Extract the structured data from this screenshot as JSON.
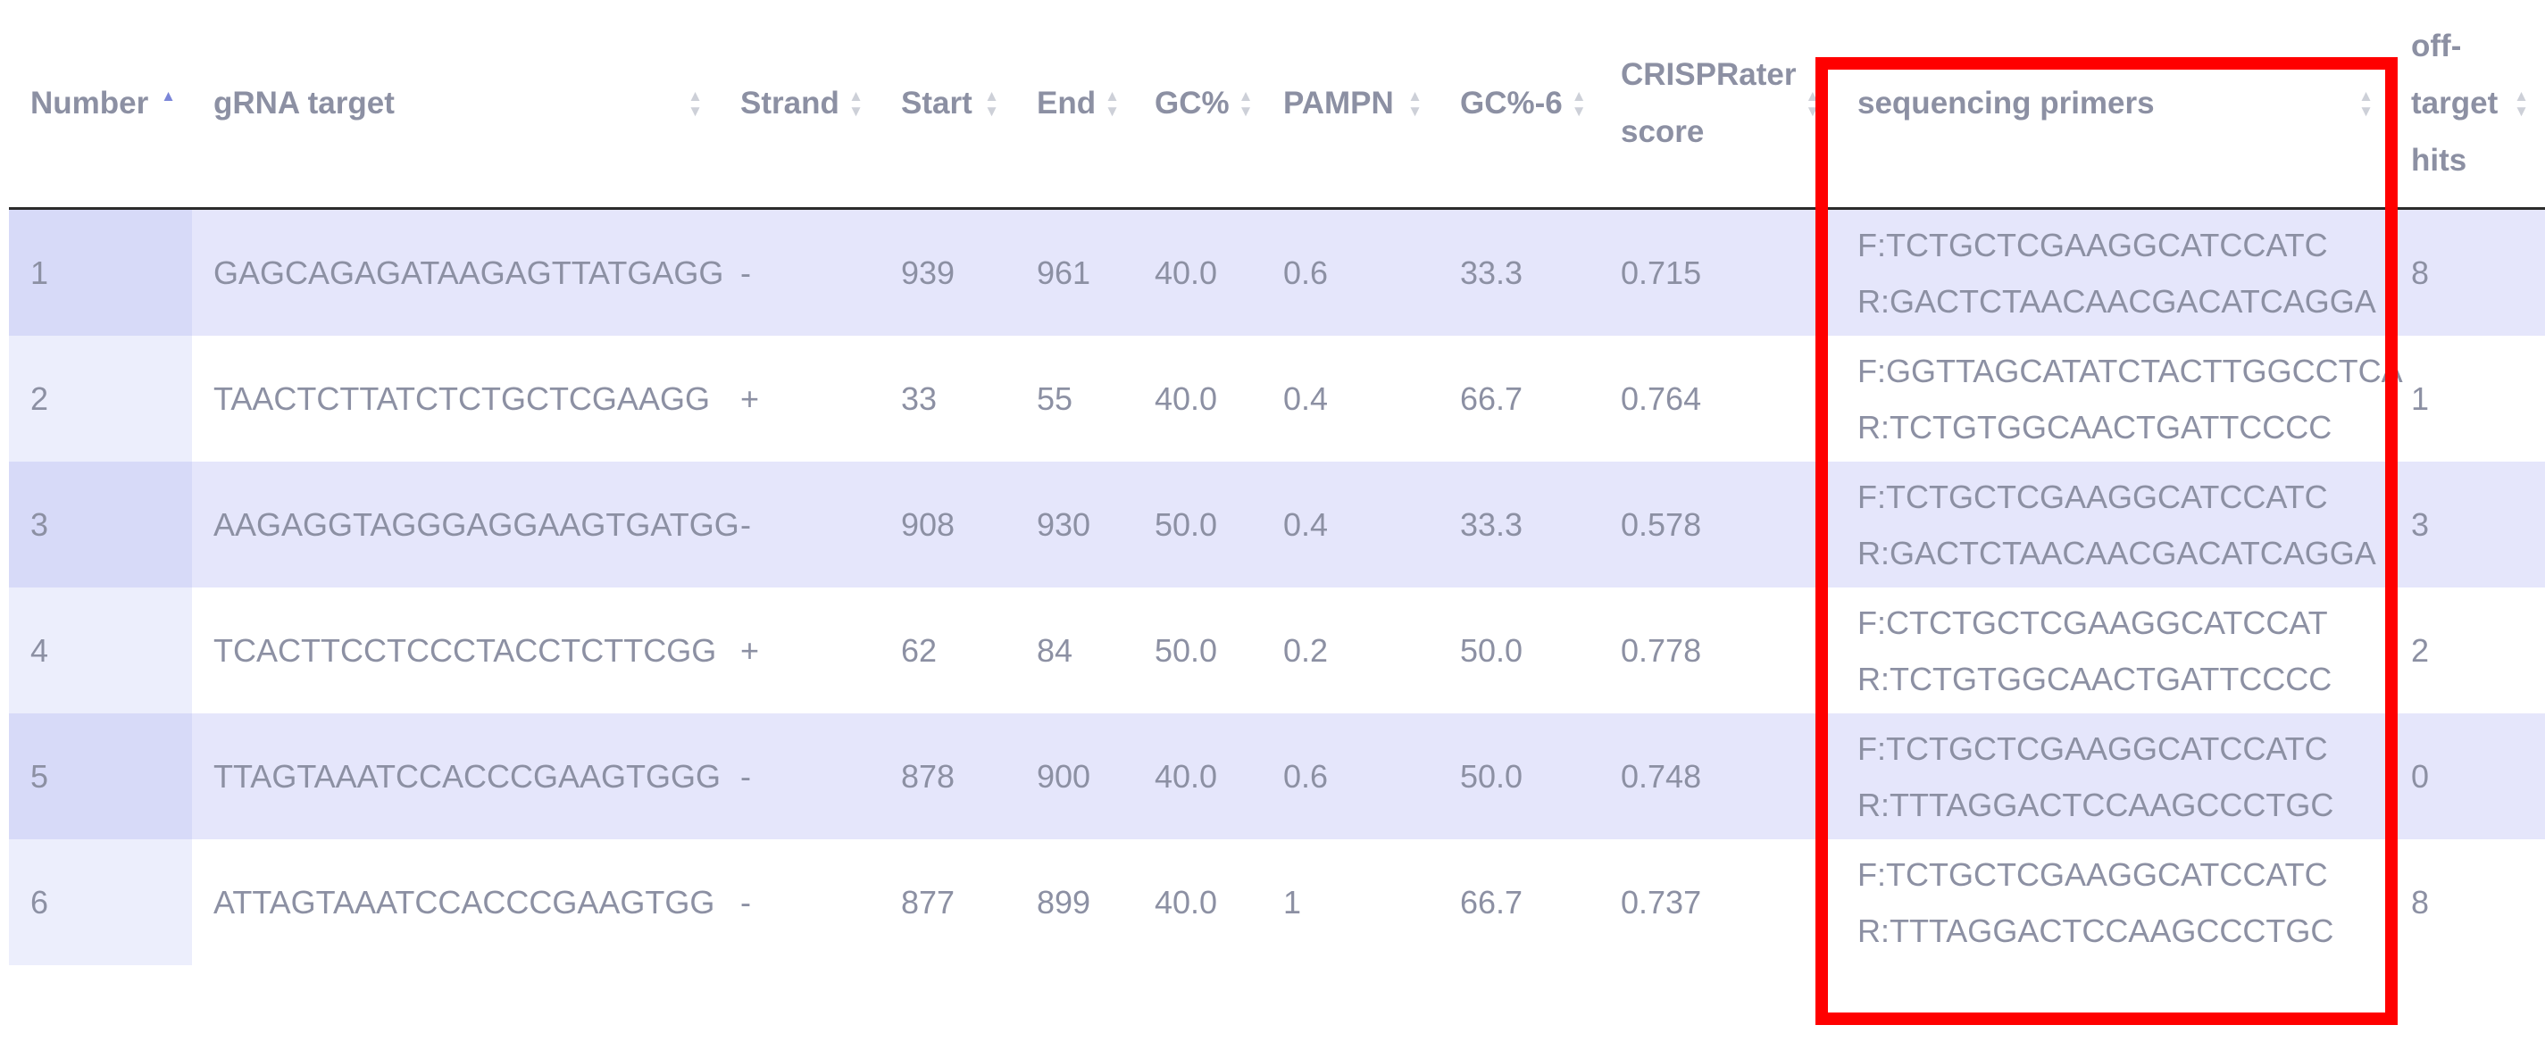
{
  "table": {
    "columns": [
      {
        "key": "number",
        "label": "Number",
        "sort": "asc"
      },
      {
        "key": "gRNA",
        "label": "gRNA target",
        "sort": "none"
      },
      {
        "key": "strand",
        "label": "Strand",
        "sort": "none"
      },
      {
        "key": "start",
        "label": "Start",
        "sort": "none"
      },
      {
        "key": "end",
        "label": "End",
        "sort": "none"
      },
      {
        "key": "gc",
        "label": "GC%",
        "sort": "none"
      },
      {
        "key": "pampn",
        "label": "PAMPN",
        "sort": "none"
      },
      {
        "key": "gc6",
        "label": "GC%-6",
        "sort": "none"
      },
      {
        "key": "crisprater",
        "label_lines": [
          "CRISPRater",
          "score"
        ],
        "sort": "none"
      },
      {
        "key": "primers",
        "label": "sequencing primers",
        "sort": "none"
      },
      {
        "key": "offtarget",
        "label_lines": [
          "off-",
          "target",
          "hits"
        ],
        "sort": "none"
      }
    ],
    "rows": [
      {
        "number": "1",
        "gRNA": "GAGCAGAGATAAGAGTTATGAGG",
        "strand": "-",
        "start": "939",
        "end": "961",
        "gc": "40.0",
        "pampn": "0.6",
        "gc6": "33.3",
        "crisprater": "0.715",
        "primer_f": "F:TCTGCTCGAAGGCATCCATC",
        "primer_r": "R:GACTCTAACAACGACATCAGGA",
        "offtarget": "8"
      },
      {
        "number": "2",
        "gRNA": "TAACTCTTATCTCTGCTCGAAGG",
        "strand": "+",
        "start": "33",
        "end": "55",
        "gc": "40.0",
        "pampn": "0.4",
        "gc6": "66.7",
        "crisprater": "0.764",
        "primer_f": "F:GGTTAGCATATCTACTTGGCCTCA",
        "primer_r": "R:TCTGTGGCAACTGATTCCCC",
        "offtarget": "1"
      },
      {
        "number": "3",
        "gRNA": "AAGAGGTAGGGAGGAAGTGATGG",
        "strand": "-",
        "start": "908",
        "end": "930",
        "gc": "50.0",
        "pampn": "0.4",
        "gc6": "33.3",
        "crisprater": "0.578",
        "primer_f": "F:TCTGCTCGAAGGCATCCATC",
        "primer_r": "R:GACTCTAACAACGACATCAGGA",
        "offtarget": "3"
      },
      {
        "number": "4",
        "gRNA": "TCACTTCCTCCCTACCTCTTCGG",
        "strand": "+",
        "start": "62",
        "end": "84",
        "gc": "50.0",
        "pampn": "0.2",
        "gc6": "50.0",
        "crisprater": "0.778",
        "primer_f": "F:CTCTGCTCGAAGGCATCCAT",
        "primer_r": "R:TCTGTGGCAACTGATTCCCC",
        "offtarget": "2"
      },
      {
        "number": "5",
        "gRNA": "TTAGTAAATCCACCCGAAGTGGG",
        "strand": "-",
        "start": "878",
        "end": "900",
        "gc": "40.0",
        "pampn": "0.6",
        "gc6": "50.0",
        "crisprater": "0.748",
        "primer_f": "F:TCTGCTCGAAGGCATCCATC",
        "primer_r": "R:TTTAGGACTCCAAGCCCTGC",
        "offtarget": "0"
      },
      {
        "number": "6",
        "gRNA": "ATTAGTAAATCCACCCGAAGTGG",
        "strand": "-",
        "start": "877",
        "end": "899",
        "gc": "40.0",
        "pampn": "1",
        "gc6": "66.7",
        "crisprater": "0.737",
        "primer_f": "F:TCTGCTCGAAGGCATCCATC",
        "primer_r": "R:TTTAGGACTCCAAGCCCTGC",
        "offtarget": "8"
      }
    ]
  },
  "colors": {
    "row_odd": "#e5e6fb",
    "row_odd_number": "#d7daf8",
    "row_even": "#ffffff",
    "row_even_number": "#eceefc",
    "text": "#8c90a3",
    "sort_active": "#7b86d8",
    "sort_inactive": "#cdd0d8",
    "highlight": "#ff0000"
  },
  "icons": {
    "sort": "sort-arrows-icon",
    "sort_active": "sort-ascending-icon"
  }
}
